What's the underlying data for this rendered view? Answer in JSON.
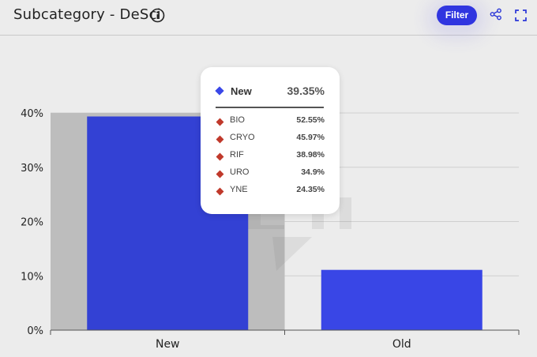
{
  "header": {
    "title": "Subcategory - DeSci",
    "filter_label": "Filter"
  },
  "icons": {
    "info": "info-circle-icon",
    "share": "share-icon",
    "expand": "expand-icon"
  },
  "colors": {
    "accent": "#3035e0",
    "bar": "#3946e6",
    "hover_bar": "#3341d4",
    "hover_band": "#bdbdbd",
    "breakdown_marker": "#c0392b"
  },
  "chart_data": {
    "type": "bar",
    "categories": [
      "New",
      "Old"
    ],
    "values": [
      39.35,
      11.1
    ],
    "ylim": [
      0,
      40
    ],
    "yticks": [
      0,
      10,
      20,
      30,
      40
    ],
    "ytick_labels": [
      "0%",
      "10%",
      "20%",
      "30%",
      "40%"
    ],
    "xlabel": "",
    "ylabel": "",
    "grid": true,
    "highlighted_category": "New"
  },
  "tooltip": {
    "series_name": "New",
    "series_value": "39.35%",
    "rows": [
      {
        "name": "BIO",
        "value": "52.55%"
      },
      {
        "name": "CRYO",
        "value": "45.97%"
      },
      {
        "name": "RIF",
        "value": "38.98%"
      },
      {
        "name": "URO",
        "value": "34.9%"
      },
      {
        "name": "YNE",
        "value": "24.35%"
      }
    ]
  }
}
